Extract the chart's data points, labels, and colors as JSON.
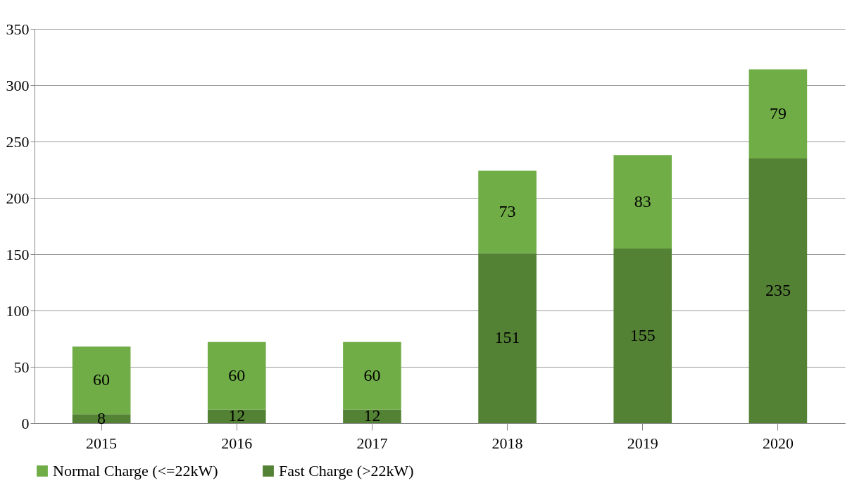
{
  "chart_data": {
    "type": "bar",
    "stacked": true,
    "categories": [
      "2015",
      "2016",
      "2017",
      "2018",
      "2019",
      "2020"
    ],
    "series": [
      {
        "name": "Fast Charge (>22kW)",
        "color": "#548235",
        "values": [
          8,
          12,
          12,
          151,
          155,
          235
        ]
      },
      {
        "name": "Normal Charge (<=22kW)",
        "color": "#70ad47",
        "values": [
          60,
          60,
          60,
          73,
          83,
          79
        ]
      }
    ],
    "ylim": [
      0,
      350
    ],
    "yticks": [
      0,
      50,
      100,
      150,
      200,
      250,
      300,
      350
    ],
    "grid": "y",
    "legend": "bottom",
    "data_labels": true
  }
}
